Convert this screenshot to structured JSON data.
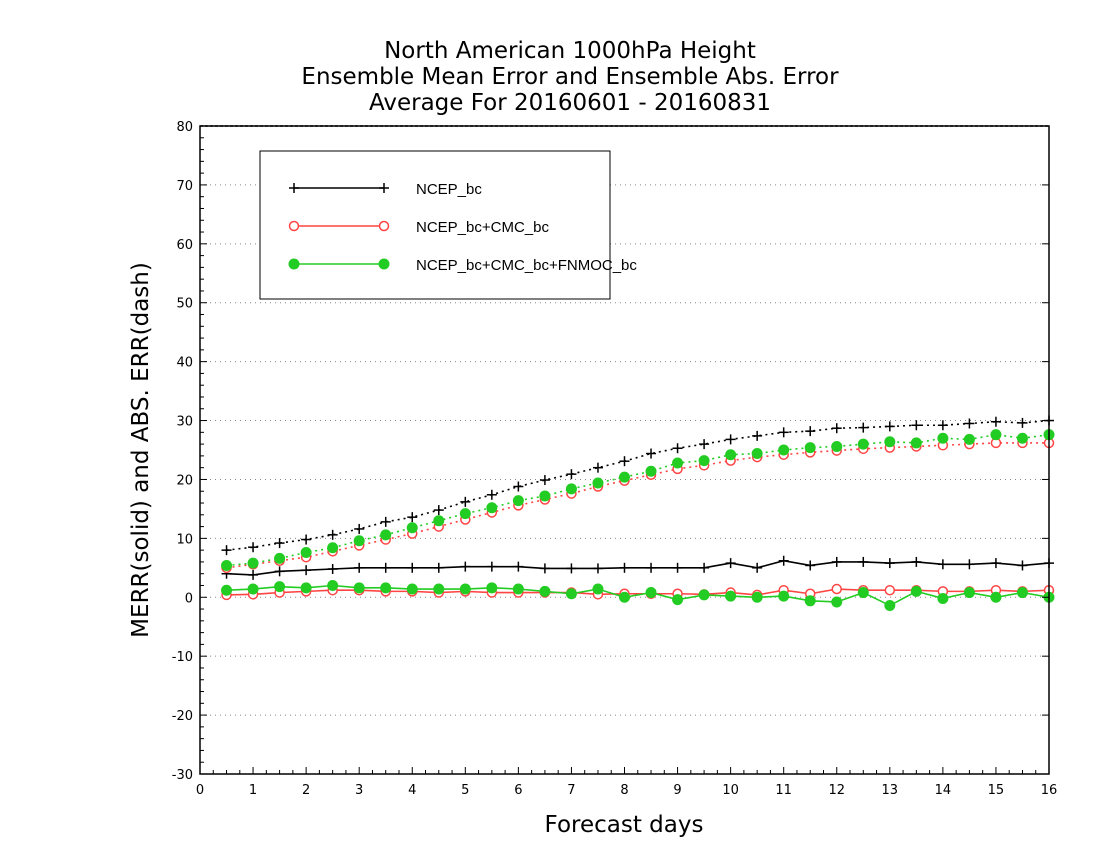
{
  "chart_data": {
    "type": "line",
    "title_lines": [
      "North American 1000hPa Height",
      "Ensemble Mean Error and Ensemble Abs. Error",
      "Average For 20160601 - 20160831"
    ],
    "xlabel": "Forecast days",
    "ylabel": "MERR(solid) and ABS. ERR(dash)",
    "xlim": [
      0,
      16
    ],
    "ylim": [
      -30,
      80
    ],
    "xticks": [
      0,
      1,
      2,
      3,
      4,
      5,
      6,
      7,
      8,
      9,
      10,
      11,
      12,
      13,
      14,
      15,
      16
    ],
    "yticks": [
      -30,
      -20,
      -10,
      0,
      10,
      20,
      30,
      40,
      50,
      60,
      70,
      80
    ],
    "grid": "horizontal dotted",
    "legend_position": "top-left",
    "x": [
      0.5,
      1,
      1.5,
      2,
      2.5,
      3,
      3.5,
      4,
      4.5,
      5,
      5.5,
      6,
      6.5,
      7,
      7.5,
      8,
      8.5,
      9,
      9.5,
      10,
      10.5,
      11,
      11.5,
      12,
      12.5,
      13,
      13.5,
      14,
      14.5,
      15,
      15.5,
      16
    ],
    "series": [
      {
        "name": "NCEP_bc",
        "color": "#000000",
        "marker": "plus",
        "merr": [
          4.0,
          3.8,
          4.4,
          4.6,
          4.8,
          5.0,
          5.0,
          5.0,
          5.0,
          5.2,
          5.2,
          5.2,
          4.9,
          4.9,
          4.9,
          5.0,
          5.0,
          5.0,
          5.0,
          5.8,
          5.0,
          6.2,
          5.4,
          6.0,
          6.0,
          5.8,
          6.0,
          5.6,
          5.6,
          5.8,
          5.4,
          5.8
        ],
        "abs_err": [
          8.0,
          8.5,
          9.2,
          9.8,
          10.6,
          11.6,
          12.8,
          13.6,
          14.8,
          16.2,
          17.4,
          18.8,
          19.9,
          20.9,
          22.0,
          23.1,
          24.4,
          25.3,
          26.0,
          26.8,
          27.4,
          28.0,
          28.2,
          28.7,
          28.8,
          29.0,
          29.2,
          29.2,
          29.5,
          29.8,
          29.6,
          30.0
        ]
      },
      {
        "name": "NCEP_bc+CMC_bc",
        "color": "#ff4444",
        "marker": "open-circle",
        "merr": [
          0.4,
          0.5,
          0.8,
          1.0,
          1.2,
          1.2,
          1.0,
          1.0,
          0.8,
          1.0,
          0.8,
          0.8,
          0.8,
          0.8,
          0.5,
          0.6,
          0.6,
          0.6,
          0.5,
          0.8,
          0.4,
          1.2,
          0.6,
          1.4,
          1.2,
          1.2,
          1.2,
          1.0,
          1.0,
          1.2,
          1.0,
          1.2
        ],
        "abs_err": [
          5.0,
          5.6,
          6.2,
          6.8,
          7.8,
          8.8,
          9.8,
          10.8,
          12.0,
          13.2,
          14.4,
          15.6,
          16.6,
          17.6,
          18.8,
          19.8,
          20.8,
          21.8,
          22.4,
          23.2,
          23.8,
          24.2,
          24.6,
          24.9,
          25.2,
          25.4,
          25.6,
          25.8,
          26.0,
          26.2,
          26.2,
          26.2
        ]
      },
      {
        "name": "NCEP_bc+CMC_bc+FNMOC_bc",
        "color": "#22cc22",
        "marker": "filled-circle",
        "merr": [
          1.2,
          1.4,
          1.8,
          1.6,
          2.0,
          1.6,
          1.6,
          1.4,
          1.4,
          1.4,
          1.6,
          1.4,
          1.0,
          0.6,
          1.4,
          0.0,
          0.8,
          -0.4,
          0.4,
          0.2,
          0.0,
          0.2,
          -0.6,
          -0.8,
          0.8,
          -1.4,
          1.0,
          -0.2,
          0.8,
          0.0,
          0.8,
          0.0
        ],
        "abs_err": [
          5.4,
          5.8,
          6.6,
          7.6,
          8.4,
          9.6,
          10.6,
          11.8,
          13.0,
          14.2,
          15.2,
          16.4,
          17.2,
          18.4,
          19.4,
          20.4,
          21.4,
          22.8,
          23.2,
          24.2,
          24.4,
          25.0,
          25.4,
          25.6,
          26.0,
          26.4,
          26.2,
          27.0,
          26.8,
          27.6,
          27.0,
          27.6
        ]
      }
    ]
  }
}
